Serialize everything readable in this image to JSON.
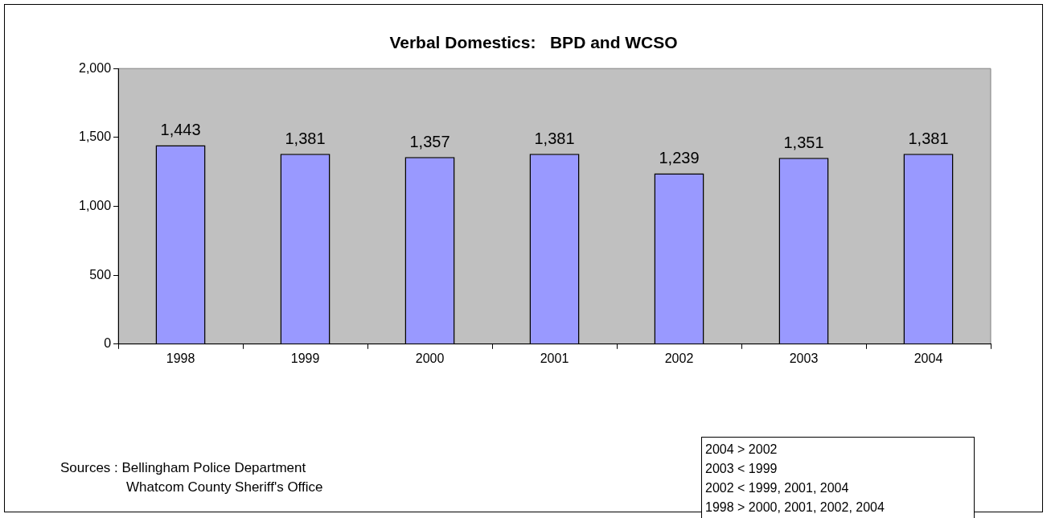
{
  "chart_data": {
    "type": "bar",
    "title": "Verbal Domestics:   BPD and WCSO",
    "categories": [
      "1998",
      "1999",
      "2000",
      "2001",
      "2002",
      "2003",
      "2004"
    ],
    "values": [
      1443,
      1381,
      1357,
      1381,
      1239,
      1351,
      1381
    ],
    "color": "#9999ff",
    "value_labels": [
      "1,443",
      "1,381",
      "1,357",
      "1,381",
      "1,239",
      "1,351",
      "1,381"
    ],
    "ylim": [
      0,
      2000
    ],
    "yticks": [
      {
        "value": 0,
        "label": "0"
      },
      {
        "value": 500,
        "label": "500"
      },
      {
        "value": 1000,
        "label": "1,000"
      },
      {
        "value": 1500,
        "label": "1,500"
      },
      {
        "value": 2000,
        "label": "2,000"
      }
    ],
    "grid": false,
    "legend": false,
    "annotations": [
      "Sources :  Bellingham Police Department",
      "Whatcom County Sheriff's Office",
      "2004 > 2002",
      "2003 < 1999",
      "2002 < 1999, 2001, 2004",
      "1998  > 2000, 2001, 2002, 2004"
    ]
  }
}
